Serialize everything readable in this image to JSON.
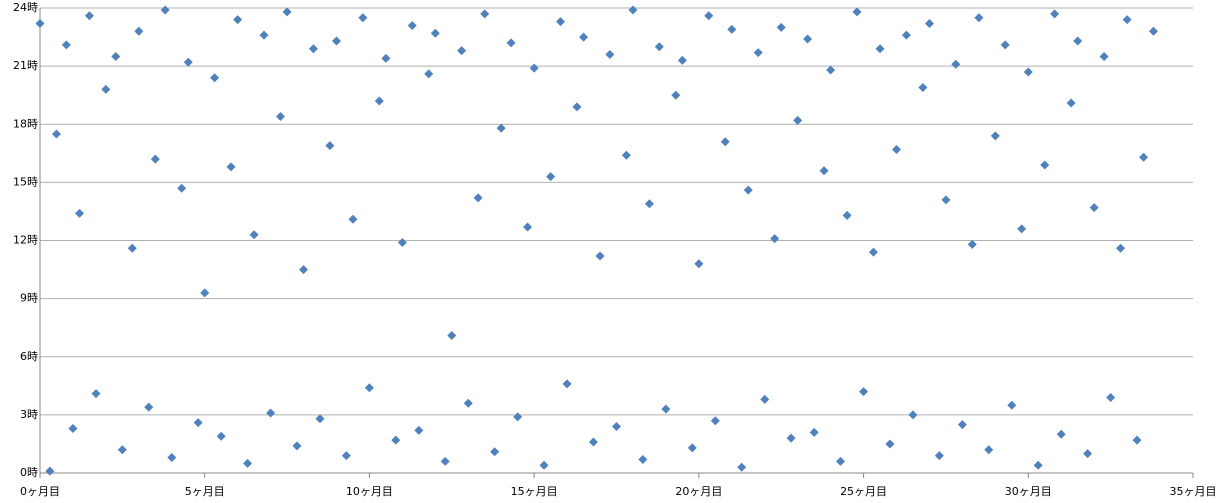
{
  "chart_data": {
    "type": "scatter",
    "color": "#4f81bd",
    "grid": true,
    "xlim": [
      0,
      35
    ],
    "xticks": [
      {
        "value": 0,
        "label": "0ヶ月目"
      },
      {
        "value": 5,
        "label": "5ヶ月目"
      },
      {
        "value": 10,
        "label": "10ヶ月目"
      },
      {
        "value": 15,
        "label": "15ヶ月目"
      },
      {
        "value": 20,
        "label": "20ヶ月目"
      },
      {
        "value": 25,
        "label": "25ヶ月目"
      },
      {
        "value": 30,
        "label": "30ヶ月目"
      },
      {
        "value": 35,
        "label": "35ヶ月目"
      }
    ],
    "ylim": [
      0,
      24
    ],
    "yticks": [
      {
        "value": 0,
        "label": "0時"
      },
      {
        "value": 3,
        "label": "3時"
      },
      {
        "value": 6,
        "label": "6時"
      },
      {
        "value": 9,
        "label": "9時"
      },
      {
        "value": 12,
        "label": "12時"
      },
      {
        "value": 15,
        "label": "15時"
      },
      {
        "value": 18,
        "label": "18時"
      },
      {
        "value": 21,
        "label": "21時"
      },
      {
        "value": 24,
        "label": "24時"
      }
    ],
    "x": [
      0,
      0.3,
      0.5,
      0.8,
      1.0,
      1.2,
      1.5,
      1.7,
      2.0,
      2.3,
      2.5,
      2.8,
      3.0,
      3.3,
      3.5,
      3.8,
      4.0,
      4.3,
      4.5,
      4.8,
      5.0,
      5.3,
      5.5,
      5.8,
      6.0,
      6.3,
      6.5,
      6.8,
      7.0,
      7.3,
      7.5,
      7.8,
      8.0,
      8.3,
      8.5,
      8.8,
      9.0,
      9.3,
      9.5,
      9.8,
      10.0,
      10.3,
      10.5,
      10.8,
      11.0,
      11.3,
      11.5,
      11.8,
      12.0,
      12.3,
      12.5,
      12.8,
      13.0,
      13.3,
      13.5,
      13.8,
      14.0,
      14.3,
      14.5,
      14.8,
      15.0,
      15.3,
      15.5,
      15.8,
      16.0,
      16.3,
      16.5,
      16.8,
      17.0,
      17.3,
      17.5,
      17.8,
      18.0,
      18.3,
      18.5,
      18.8,
      19.0,
      19.3,
      19.5,
      19.8,
      20.0,
      20.3,
      20.5,
      20.8,
      21.0,
      21.3,
      21.5,
      21.8,
      22.0,
      22.3,
      22.5,
      22.8,
      23.0,
      23.3,
      23.5,
      23.8,
      24.0,
      24.3,
      24.5,
      24.8,
      25.0,
      25.3,
      25.5,
      25.8,
      26.0,
      26.3,
      26.5,
      26.8,
      27.0,
      27.3,
      27.5,
      27.8,
      28.0,
      28.3,
      28.5,
      28.8,
      29.0,
      29.3,
      29.5,
      29.8,
      30.0,
      30.3,
      30.5,
      30.8,
      31.0,
      31.3,
      31.5,
      31.8,
      32.0,
      32.3,
      32.5,
      32.8,
      33.0,
      33.3,
      33.5,
      33.8
    ],
    "values": [
      23.2,
      0.1,
      17.5,
      22.1,
      2.3,
      13.4,
      23.6,
      4.1,
      19.8,
      21.5,
      1.2,
      11.6,
      22.8,
      3.4,
      16.2,
      23.9,
      0.8,
      14.7,
      21.2,
      2.6,
      9.3,
      20.4,
      1.9,
      15.8,
      23.4,
      0.5,
      12.3,
      22.6,
      3.1,
      18.4,
      23.8,
      1.4,
      10.5,
      21.9,
      2.8,
      16.9,
      22.3,
      0.9,
      13.1,
      23.5,
      4.4,
      19.2,
      21.4,
      1.7,
      11.9,
      23.1,
      2.2,
      20.6,
      22.7,
      0.6,
      7.1,
      21.8,
      3.6,
      14.2,
      23.7,
      1.1,
      17.8,
      22.2,
      2.9,
      12.7,
      20.9,
      0.4,
      15.3,
      23.3,
      4.6,
      18.9,
      22.5,
      1.6,
      11.2,
      21.6,
      2.4,
      16.4,
      23.9,
      0.7,
      13.9,
      22.0,
      3.3,
      19.5,
      21.3,
      1.3,
      10.8,
      23.6,
      2.7,
      17.1,
      22.9,
      0.3,
      14.6,
      21.7,
      3.8,
      12.1,
      23.0,
      1.8,
      18.2,
      22.4,
      2.1,
      15.6,
      20.8,
      0.6,
      13.3,
      23.8,
      4.2,
      11.4,
      21.9,
      1.5,
      16.7,
      22.6,
      3.0,
      19.9,
      23.2,
      0.9,
      14.1,
      21.1,
      2.5,
      11.8,
      23.5,
      1.2,
      17.4,
      22.1,
      3.5,
      12.6,
      20.7,
      0.4,
      15.9,
      23.7,
      2.0,
      19.1,
      22.3,
      1.0,
      13.7,
      21.5,
      3.9,
      11.6,
      23.4,
      1.7,
      16.3,
      22.8
    ]
  }
}
